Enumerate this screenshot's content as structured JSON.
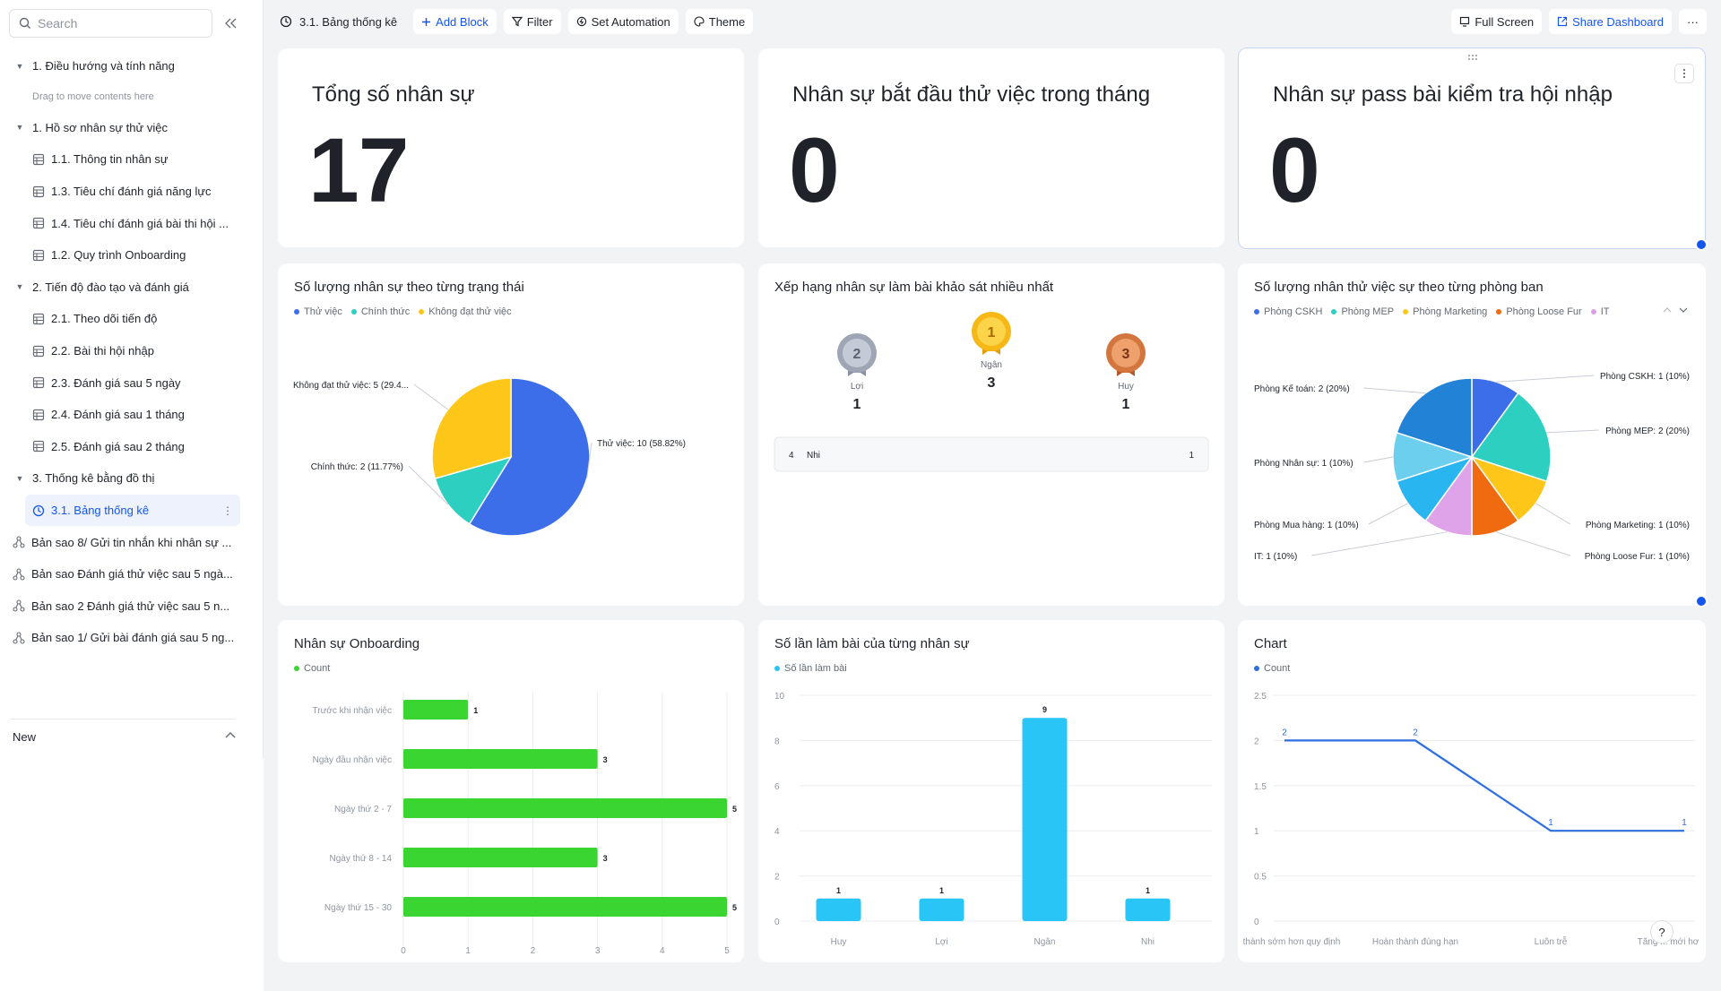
{
  "sidebar": {
    "search_placeholder": "Search",
    "items": [
      {
        "label": "1. Điều hướng và tính năng",
        "type": "group"
      },
      {
        "label": "Drag to move contents here",
        "type": "hint"
      },
      {
        "label": "1. Hồ sơ nhân sự thử việc",
        "type": "group"
      },
      {
        "label": "1.1. Thông tin nhân sự",
        "type": "table"
      },
      {
        "label": "1.3. Tiêu chí đánh giá năng lực",
        "type": "table"
      },
      {
        "label": "1.4. Tiêu chí đánh giá bài thi hội ...",
        "type": "table"
      },
      {
        "label": "1.2. Quy trình Onboarding",
        "type": "table"
      },
      {
        "label": "2. Tiến độ đào tạo và đánh giá",
        "type": "group"
      },
      {
        "label": "2.1. Theo dõi tiến độ",
        "type": "table"
      },
      {
        "label": "2.2. Bài thi hội nhập",
        "type": "table"
      },
      {
        "label": "2.3. Đánh giá sau 5 ngày",
        "type": "table"
      },
      {
        "label": "2.4. Đánh giá sau 1 tháng",
        "type": "table"
      },
      {
        "label": "2.5. Đánh giá sau 2 tháng",
        "type": "table"
      },
      {
        "label": "3. Thống kê bằng đồ thị",
        "type": "group"
      },
      {
        "label": "3.1. Bảng thống kê",
        "type": "dashboard"
      },
      {
        "label": "Bản sao 8/ Gửi tin nhắn khi nhân sự ...",
        "type": "workflow"
      },
      {
        "label": "Bản sao Đánh giá thử việc sau 5 ngà...",
        "type": "workflow"
      },
      {
        "label": "Bản sao 2 Đánh giá thử việc sau 5 n...",
        "type": "workflow"
      },
      {
        "label": "Bản sao 1/ Gửi bài đánh giá sau 5 ng...",
        "type": "workflow"
      }
    ],
    "new_label": "New"
  },
  "toolbar": {
    "title": "3.1. Bảng thống kê",
    "add_block": "Add Block",
    "filter": "Filter",
    "set_automation": "Set Automation",
    "theme": "Theme",
    "full_screen": "Full Screen",
    "share_dashboard": "Share Dashboard",
    "more": "···"
  },
  "kpis": [
    {
      "title": "Tổng số nhân sự",
      "value": "17"
    },
    {
      "title": "Nhân sự bắt đầu thử việc trong tháng",
      "value": "0"
    },
    {
      "title": "Nhân sự pass bài kiểm tra hội nhập",
      "value": "0"
    }
  ],
  "colors": {
    "accent": "#1456f0",
    "green": "#3ad531",
    "cyan": "#29c5f6",
    "blue_line": "#2d6ee0"
  },
  "chart_data": [
    {
      "type": "pie",
      "title": "Số lượng nhân sự theo từng trạng thái",
      "legend": [
        "Thử việc",
        "Chính thức",
        "Không đạt thử việc"
      ],
      "colors": [
        "#3b6ee8",
        "#2ccfc0",
        "#fdc618"
      ],
      "values": [
        10,
        2,
        5
      ],
      "labels": [
        "Thử việc: 10 (58.82%)",
        "Chính thức: 2 (11.77%)",
        "Không đạt thử việc: 5 (29.4..."
      ]
    },
    {
      "type": "table",
      "title": "Xếp hạng nhân sự làm bài khảo sát nhiều nhất",
      "podium": [
        {
          "rank": "2",
          "name": "Lợi",
          "value": "1"
        },
        {
          "rank": "1",
          "name": "Ngân",
          "value": "3"
        },
        {
          "rank": "3",
          "name": "Huy",
          "value": "1"
        }
      ],
      "rows": [
        {
          "rank": "4",
          "name": "Nhi",
          "value": "1"
        }
      ]
    },
    {
      "type": "pie",
      "title": "Số lượng nhân thử việc sự theo từng phòng ban",
      "legend": [
        "Phòng CSKH",
        "Phòng MEP",
        "Phòng Marketing",
        "Phòng Loose Fur",
        "IT"
      ],
      "legend_colors": [
        "#3b6ee8",
        "#2ccfc0",
        "#fdc618",
        "#f06a0f",
        "#d99ee6"
      ],
      "slices": [
        {
          "label": "Phòng CSKH: 1 (10%)",
          "value": 1,
          "color": "#3b6ee8"
        },
        {
          "label": "Phòng MEP: 2 (20%)",
          "value": 2,
          "color": "#2ccfc0"
        },
        {
          "label": "Phòng Marketing: 1 (10%)",
          "value": 1,
          "color": "#fdc618"
        },
        {
          "label": "Phòng Loose Fur: 1 (10%)",
          "value": 1,
          "color": "#f06a0f"
        },
        {
          "label": "IT: 1 (10%)",
          "value": 1,
          "color": "#dea3e8"
        },
        {
          "label": "Phòng Mua hàng: 1 (10%)",
          "value": 1,
          "color": "#29b5ef"
        },
        {
          "label": "Phòng Nhân sự: 1 (10%)",
          "value": 1,
          "color": "#6dcfee"
        },
        {
          "label": "Phòng Kế toán: 2 (20%)",
          "value": 2,
          "color": "#2283d6"
        }
      ]
    },
    {
      "type": "bar",
      "orientation": "horizontal",
      "title": "Nhân sự Onboarding",
      "legend": [
        "Count"
      ],
      "categories": [
        "Trước khi nhận việc",
        "Ngày đầu nhận việc",
        "Ngày thứ 2 - 7",
        "Ngày thứ 8 - 14",
        "Ngày thứ 15 - 30"
      ],
      "values": [
        1,
        3,
        5,
        3,
        5
      ],
      "xlim": [
        0,
        5
      ],
      "xticks": [
        "0",
        "1",
        "2",
        "3",
        "4",
        "5"
      ],
      "color": "#3ad531"
    },
    {
      "type": "bar",
      "title": "Số lần làm bài của từng nhân sự",
      "legend": [
        "Số lần làm bài"
      ],
      "categories": [
        "Huy",
        "Lợi",
        "Ngân",
        "Nhi"
      ],
      "values": [
        1,
        1,
        9,
        1
      ],
      "ylim": [
        0,
        10
      ],
      "yticks": [
        "0",
        "2",
        "4",
        "6",
        "8",
        "10"
      ],
      "color": "#29c5f6"
    },
    {
      "type": "line",
      "title": "Chart",
      "legend": [
        "Count"
      ],
      "categories": [
        "thành sớm hơn quy định",
        "Hoàn thành đúng hạn",
        "Luôn trễ",
        "Tăng ... mới hơ"
      ],
      "values": [
        2,
        2,
        1,
        1
      ],
      "ylim": [
        0,
        2.5
      ],
      "yticks": [
        "0",
        "0.5",
        "1",
        "1.5",
        "2",
        "2.5"
      ],
      "color": "#2d6ee0"
    }
  ]
}
